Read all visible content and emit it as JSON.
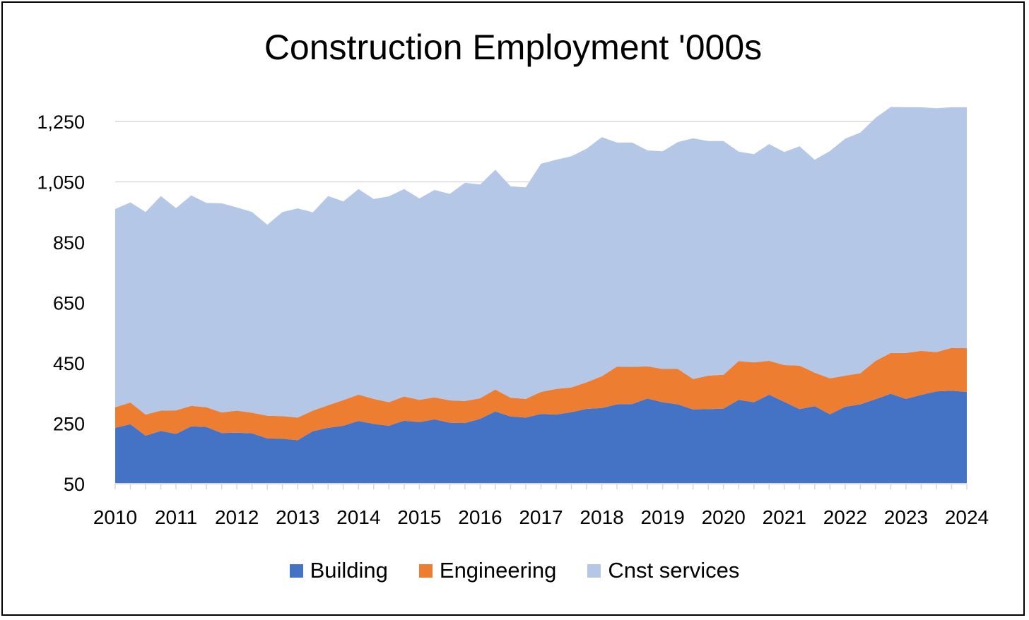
{
  "chart_data": {
    "type": "area",
    "stacked": true,
    "title": "Construction Employment '000s",
    "xlabel": "",
    "ylabel": "",
    "ylim": [
      50,
      1250
    ],
    "y_ticks": [
      "50",
      "250",
      "450",
      "650",
      "850",
      "1,050",
      "1,250"
    ],
    "x_ticks": [
      "2010",
      "2011",
      "2012",
      "2013",
      "2014",
      "2015",
      "2016",
      "2017",
      "2018",
      "2019",
      "2020",
      "2021",
      "2022",
      "2023",
      "2024"
    ],
    "grid": true,
    "legend_position": "bottom",
    "quarters_per_year": 4,
    "series": [
      {
        "name": "Building",
        "color": "#4472C4",
        "values": [
          235,
          247,
          209,
          225,
          215,
          240,
          238,
          218,
          219,
          217,
          200,
          199,
          194,
          224,
          235,
          242,
          258,
          248,
          242,
          259,
          254,
          263,
          252,
          251,
          265,
          289,
          273,
          269,
          281,
          279,
          287,
          298,
          301,
          313,
          314,
          332,
          320,
          313,
          296,
          297,
          299,
          328,
          320,
          345,
          321,
          297,
          307,
          280,
          305,
          313,
          330,
          348,
          331,
          344,
          356,
          358,
          354
        ]
      },
      {
        "name": "Engineering",
        "color": "#ED7D31",
        "values": [
          68,
          72,
          70,
          67,
          78,
          68,
          65,
          68,
          73,
          68,
          75,
          75,
          75,
          68,
          75,
          85,
          87,
          83,
          78,
          80,
          74,
          73,
          74,
          73,
          68,
          73,
          62,
          62,
          73,
          85,
          82,
          88,
          105,
          125,
          123,
          107,
          110,
          117,
          101,
          111,
          112,
          128,
          132,
          112,
          122,
          144,
          111,
          119,
          103,
          103,
          127,
          135,
          152,
          146,
          130,
          142,
          145
        ]
      },
      {
        "name": "Cnst services",
        "color": "#B4C7E7",
        "values": [
          657,
          663,
          671,
          711,
          670,
          697,
          677,
          693,
          673,
          665,
          633,
          676,
          693,
          657,
          693,
          658,
          681,
          662,
          682,
          687,
          667,
          687,
          684,
          723,
          708,
          728,
          700,
          701,
          756,
          759,
          766,
          774,
          792,
          742,
          743,
          715,
          721,
          752,
          797,
          777,
          774,
          694,
          690,
          718,
          706,
          727,
          705,
          753,
          785,
          797,
          805,
          815,
          814,
          807,
          808,
          797,
          798
        ]
      }
    ],
    "topline_note": "top of Cnst services clipped at chart top in 2023-2024"
  }
}
